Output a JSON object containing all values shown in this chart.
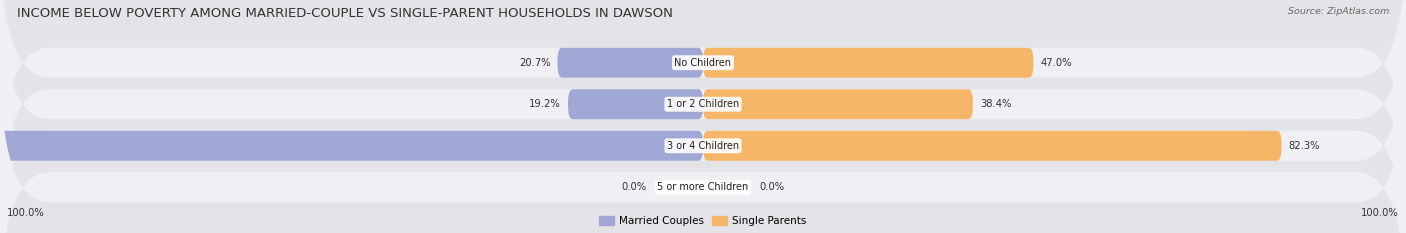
{
  "title": "INCOME BELOW POVERTY AMONG MARRIED-COUPLE VS SINGLE-PARENT HOUSEHOLDS IN DAWSON",
  "source": "Source: ZipAtlas.com",
  "categories": [
    "No Children",
    "1 or 2 Children",
    "3 or 4 Children",
    "5 or more Children"
  ],
  "married_values": [
    20.7,
    19.2,
    100.0,
    0.0
  ],
  "single_values": [
    47.0,
    38.4,
    82.3,
    0.0
  ],
  "married_color": "#9fa8d4",
  "single_color": "#f5b668",
  "row_colors": [
    "#f0f0f0",
    "#e8e8e8",
    "#e0e0e8",
    "#f0f0f0"
  ],
  "pill_bg_color": "#e8e8ec",
  "title_fontsize": 9.5,
  "label_fontsize": 7.5,
  "axis_max": 100.0,
  "legend_labels": [
    "Married Couples",
    "Single Parents"
  ],
  "bottom_left_label": "100.0%",
  "bottom_right_label": "100.0%"
}
